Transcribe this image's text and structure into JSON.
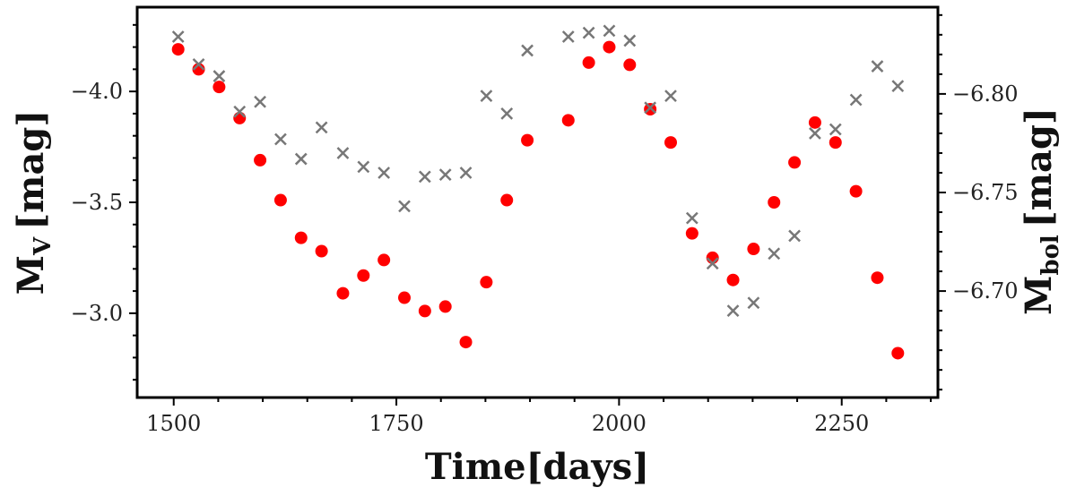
{
  "chart_data": {
    "type": "scatter",
    "xlabel": "Time[days]",
    "ylabel_left": {
      "main": "M",
      "sub": "V",
      "unit": "[mag]"
    },
    "ylabel_right": {
      "main": "M",
      "sub": "bol",
      "unit": "[mag]"
    },
    "xlim": [
      1459,
      2358
    ],
    "ylim_left": [
      -2.62,
      -4.38
    ],
    "ylim_right": [
      -6.646,
      -6.844
    ],
    "x_ticks": [
      1500,
      1750,
      2000,
      2250
    ],
    "x_tick_labels": [
      "1500",
      "1750",
      "2000",
      "2250"
    ],
    "left_ticks": [
      -4.0,
      -3.5,
      -3.0
    ],
    "left_tick_labels": [
      "−4.0",
      "−3.5",
      "−3.0"
    ],
    "right_ticks": [
      -6.8,
      -6.75,
      -6.7
    ],
    "right_tick_labels": [
      "−6.80",
      "−6.75",
      "−6.70"
    ],
    "grid": false,
    "series": [
      {
        "marker": "circle",
        "color": "#ff0000",
        "axis": "left",
        "x": [
          1505,
          1528,
          1551,
          1574,
          1597,
          1620,
          1643,
          1666,
          1690,
          1713,
          1736,
          1759,
          1782,
          1805,
          1828,
          1851,
          1874,
          1897,
          1943,
          1966,
          1989,
          2012,
          2035,
          2058,
          2082,
          2105,
          2128,
          2151,
          2174,
          2197,
          2220,
          2243,
          2266,
          2290,
          2313
        ],
        "y": [
          -4.19,
          -4.1,
          -4.02,
          -3.88,
          -3.69,
          -3.51,
          -3.34,
          -3.28,
          -3.09,
          -3.17,
          -3.24,
          -3.07,
          -3.01,
          -3.03,
          -2.87,
          -3.14,
          -3.51,
          -3.78,
          -3.87,
          -4.13,
          -4.2,
          -4.12,
          -3.92,
          -3.77,
          -3.36,
          -3.25,
          -3.15,
          -3.29,
          -3.5,
          -3.68,
          -3.86,
          -3.77,
          -3.55,
          -3.16,
          -2.82
        ]
      },
      {
        "marker": "x",
        "color": "#777777",
        "axis": "right",
        "x": [
          1505,
          1528,
          1551,
          1574,
          1597,
          1620,
          1643,
          1666,
          1690,
          1713,
          1736,
          1759,
          1782,
          1805,
          1828,
          1851,
          1874,
          1897,
          1943,
          1966,
          1989,
          2012,
          2035,
          2058,
          2082,
          2105,
          2128,
          2151,
          2174,
          2197,
          2220,
          2243,
          2266,
          2290,
          2313
        ],
        "y": [
          -6.829,
          -6.815,
          -6.809,
          -6.791,
          -6.796,
          -6.777,
          -6.767,
          -6.783,
          -6.77,
          -6.763,
          -6.76,
          -6.743,
          -6.758,
          -6.759,
          -6.76,
          -6.799,
          -6.79,
          -6.822,
          -6.829,
          -6.831,
          -6.832,
          -6.827,
          -6.793,
          -6.799,
          -6.737,
          -6.714,
          -6.69,
          -6.694,
          -6.719,
          -6.728,
          -6.78,
          -6.782,
          -6.797,
          -6.814,
          -6.804
        ]
      }
    ]
  }
}
